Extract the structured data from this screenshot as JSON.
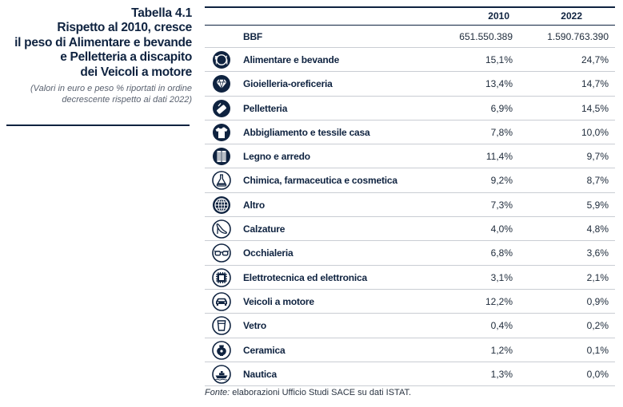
{
  "left": {
    "table_number": "Tabella 4.1",
    "title_lines": [
      "Rispetto al 2010, cresce",
      "il peso di Alimentare e bevande",
      "e Pelletteria a discapito",
      "dei Veicoli a motore"
    ],
    "subtitle_lines": [
      "(Valori in euro e peso % riportati in ordine",
      "decrescente rispetto ai dati 2022)"
    ]
  },
  "table": {
    "headers": [
      "2010",
      "2022"
    ],
    "bbf": {
      "label": "BBF",
      "v2010": "651.550.389",
      "v2022": "1.590.763.390"
    },
    "rows": [
      {
        "icon": "food-plate-icon",
        "label": "Alimentare e bevande",
        "v2010": "15,1%",
        "v2022": "24,7%"
      },
      {
        "icon": "diamond-icon",
        "label": "Gioielleria-oreficeria",
        "v2010": "13,4%",
        "v2022": "14,7%"
      },
      {
        "icon": "leather-bag-icon",
        "label": "Pelletteria",
        "v2010": "6,9%",
        "v2022": "14,5%"
      },
      {
        "icon": "tshirt-icon",
        "label": "Abbigliamento e tessile casa",
        "v2010": "7,8%",
        "v2022": "10,0%"
      },
      {
        "icon": "wardrobe-icon",
        "label": "Legno e arredo",
        "v2010": "11,4%",
        "v2022": "9,7%"
      },
      {
        "icon": "flask-icon",
        "label": "Chimica, farmaceutica e cosmetica",
        "v2010": "9,2%",
        "v2022": "8,7%"
      },
      {
        "icon": "globe-icon",
        "label": "Altro",
        "v2010": "7,3%",
        "v2022": "5,9%"
      },
      {
        "icon": "high-heel-icon",
        "label": "Calzature",
        "v2010": "4,0%",
        "v2022": "4,8%"
      },
      {
        "icon": "glasses-icon",
        "label": "Occhialeria",
        "v2010": "6,8%",
        "v2022": "3,6%"
      },
      {
        "icon": "chip-icon",
        "label": "Elettrotecnica ed elettronica",
        "v2010": "3,1%",
        "v2022": "2,1%"
      },
      {
        "icon": "car-icon",
        "label": "Veicoli a motore",
        "v2010": "12,2%",
        "v2022": "0,9%"
      },
      {
        "icon": "glass-cup-icon",
        "label": "Vetro",
        "v2010": "0,4%",
        "v2022": "0,2%"
      },
      {
        "icon": "vase-icon",
        "label": "Ceramica",
        "v2010": "1,2%",
        "v2022": "0,1%"
      },
      {
        "icon": "ship-icon",
        "label": "Nautica",
        "v2010": "1,3%",
        "v2022": "0,0%"
      }
    ]
  },
  "source": {
    "prefix": "Fonte:",
    "text": " elaborazioni Ufficio Studi SACE su dati ISTAT."
  },
  "colors": {
    "navy": "#0f2340",
    "rule_gray": "#c9cdd3"
  }
}
